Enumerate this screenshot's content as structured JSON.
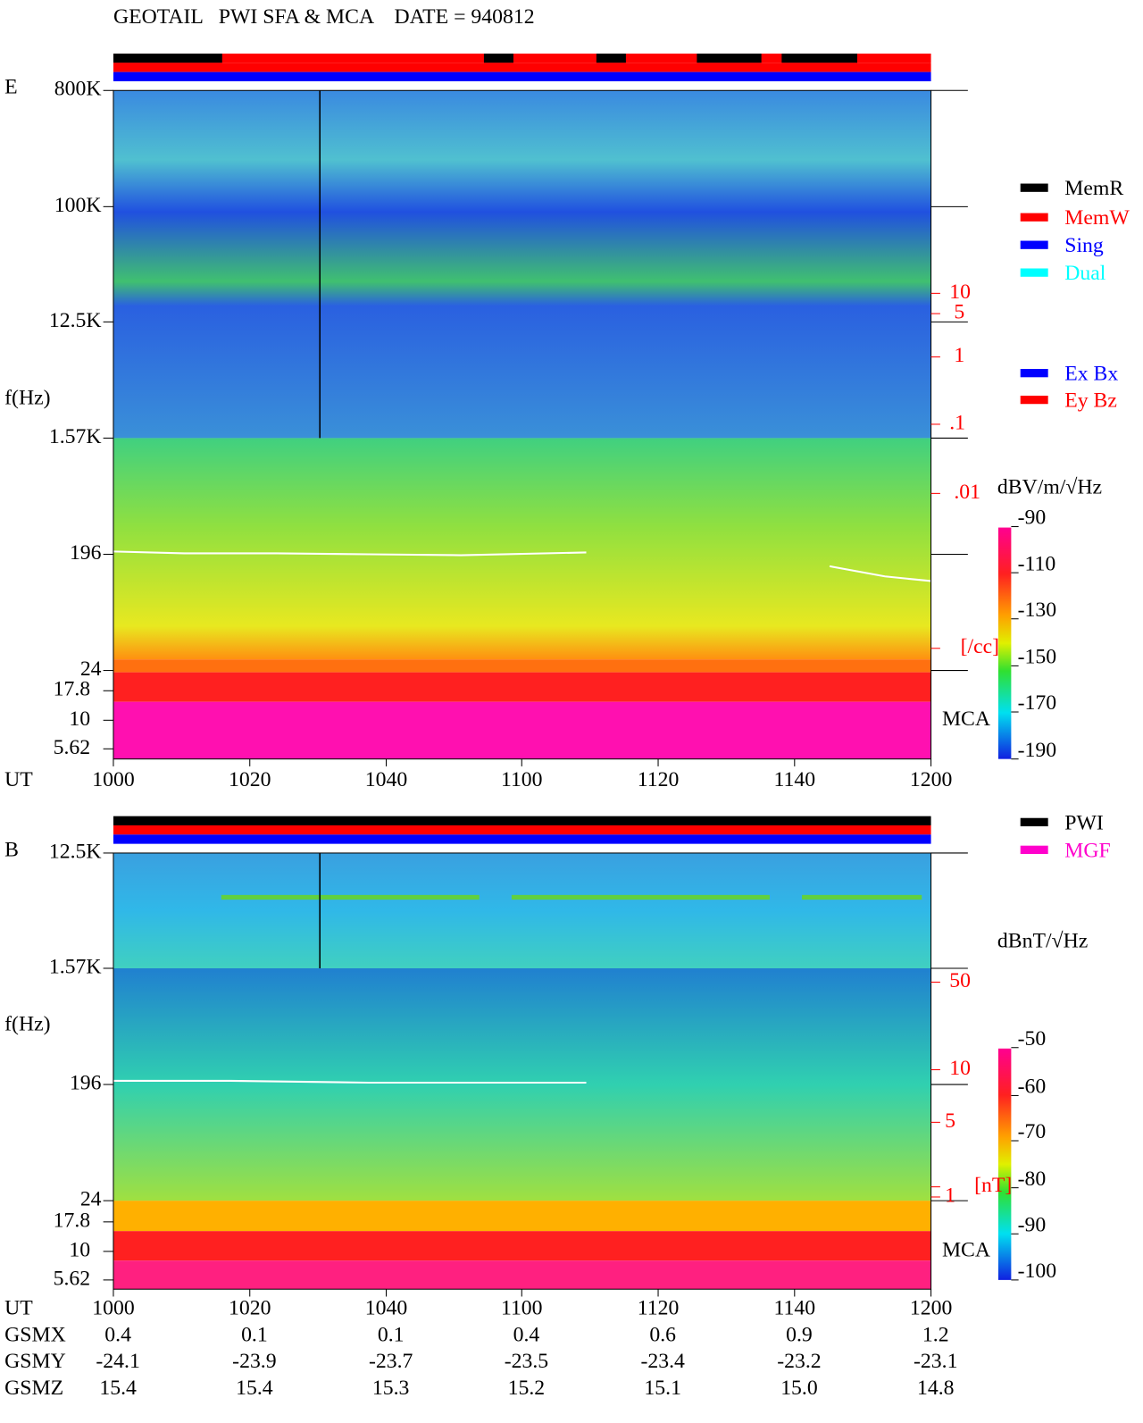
{
  "header": {
    "title": "GEOTAIL   PWI SFA & MCA    DATE = 940812"
  },
  "panels": [
    {
      "label": "E",
      "y_axis_label": "f(Hz)",
      "y_ticks": [
        "800K",
        "100K",
        "12.5K",
        "1.57K",
        "196",
        "24"
      ],
      "mca_ticks": [
        "17.8",
        "10",
        "5.62"
      ],
      "right_labels": [
        "10",
        "5",
        "1",
        ".1",
        ".01",
        "[/cc]"
      ],
      "mca_label": "MCA",
      "legend": [
        "MemR",
        "MemW",
        "Sing",
        "Dual"
      ],
      "legend2": [
        "Ex Bx",
        "Ey Bz"
      ],
      "colorbar": {
        "title": "dBV/m/√Hz",
        "ticks": [
          "-90",
          "-110",
          "-130",
          "-150",
          "-170",
          "-190"
        ]
      },
      "x_axis_label": "UT",
      "x_ticks": [
        "1000",
        "1020",
        "1040",
        "1100",
        "1120",
        "1140",
        "1200"
      ]
    },
    {
      "label": "B",
      "y_axis_label": "f(Hz)",
      "y_ticks": [
        "12.5K",
        "1.57K",
        "196",
        "24"
      ],
      "mca_ticks": [
        "17.8",
        "10",
        "5.62"
      ],
      "right_labels": [
        "50",
        "10",
        "5",
        "1",
        "[nT]"
      ],
      "mca_label": "MCA",
      "legend": [
        "PWI",
        "MGF"
      ],
      "colorbar": {
        "title": "dBnT/√Hz",
        "ticks": [
          "-50",
          "-60",
          "-70",
          "-80",
          "-90",
          "-100"
        ]
      },
      "x_axis_label": "UT",
      "x_ticks": [
        "1000",
        "1020",
        "1040",
        "1100",
        "1120",
        "1140",
        "1200"
      ]
    }
  ],
  "orbit": {
    "rows": [
      {
        "label": "GSMX",
        "values": [
          "0.4",
          "0.1",
          "0.1",
          "0.4",
          "0.6",
          "0.9",
          "1.2"
        ]
      },
      {
        "label": "GSMY",
        "values": [
          "-24.1",
          "-23.9",
          "-23.7",
          "-23.5",
          "-23.4",
          "-23.2",
          "-23.1"
        ]
      },
      {
        "label": "GSMZ",
        "values": [
          "15.4",
          "15.4",
          "15.3",
          "15.2",
          "15.1",
          "15.0",
          "14.8"
        ]
      }
    ]
  }
}
